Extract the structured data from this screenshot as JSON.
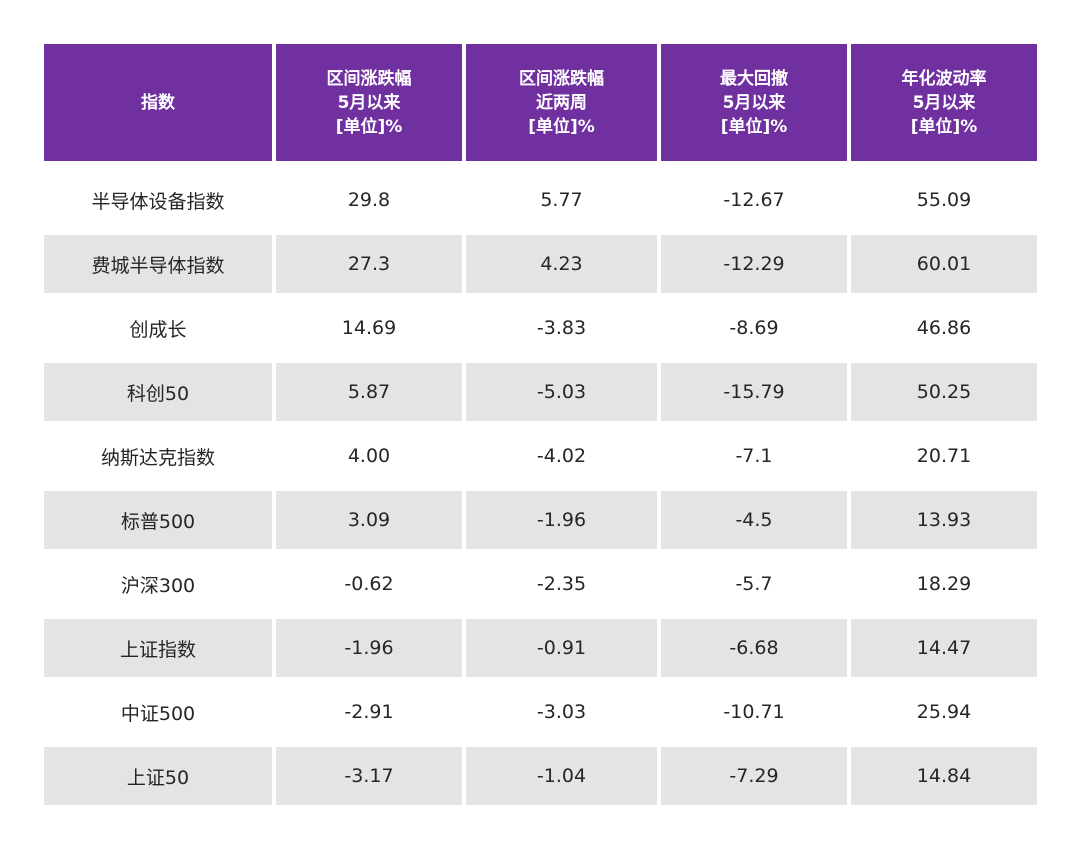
{
  "chart_data": {
    "type": "table",
    "columns": [
      {
        "lines": [
          "指数"
        ]
      },
      {
        "lines": [
          "区间涨跌幅",
          "5月以来",
          "[单位]%"
        ]
      },
      {
        "lines": [
          "区间涨跌幅",
          "近两周",
          "[单位]%"
        ]
      },
      {
        "lines": [
          "最大回撤",
          "5月以来",
          "[单位]%"
        ]
      },
      {
        "lines": [
          "年化波动率",
          "5月以来",
          "[单位]%"
        ]
      }
    ],
    "rows": [
      [
        "半导体设备指数",
        "29.8",
        "5.77",
        "-12.67",
        "55.09"
      ],
      [
        "费城半导体指数",
        "27.3",
        "4.23",
        "-12.29",
        "60.01"
      ],
      [
        "创成长",
        "14.69",
        "-3.83",
        "-8.69",
        "46.86"
      ],
      [
        "科创50",
        "5.87",
        "-5.03",
        "-15.79",
        "50.25"
      ],
      [
        "纳斯达克指数",
        "4.00",
        "-4.02",
        "-7.1",
        "20.71"
      ],
      [
        "标普500",
        "3.09",
        "-1.96",
        "-4.5",
        "13.93"
      ],
      [
        "沪深300",
        "-0.62",
        "-2.35",
        "-5.7",
        "18.29"
      ],
      [
        "上证指数",
        "-1.96",
        "-0.91",
        "-6.68",
        "14.47"
      ],
      [
        "中证500",
        "-2.91",
        "-3.03",
        "-10.71",
        "25.94"
      ],
      [
        "上证50",
        "-3.17",
        "-1.04",
        "-7.29",
        "14.84"
      ]
    ]
  },
  "colors": {
    "header_bg": "#7030a0",
    "header_text": "#ffffff",
    "alt_row_bg": "#e4e4e4",
    "text": "#262626"
  }
}
